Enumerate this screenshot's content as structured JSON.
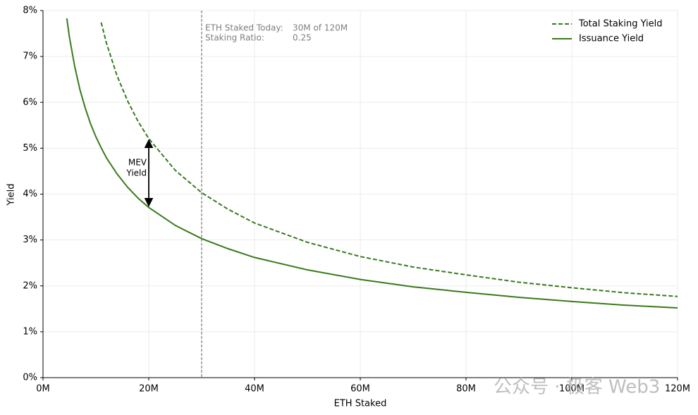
{
  "chart_data": {
    "type": "line",
    "xlabel": "ETH Staked",
    "ylabel": "Yield",
    "x": [
      4.5,
      5,
      6,
      7,
      8,
      9,
      10,
      11,
      12,
      14,
      16,
      18,
      20,
      25,
      30,
      35,
      40,
      50,
      60,
      70,
      80,
      90,
      100,
      110,
      120
    ],
    "series": [
      {
        "name": "Total Staking Yield",
        "color": "#3a7a1c",
        "dash": true,
        "values": [
          null,
          null,
          null,
          null,
          null,
          null,
          null,
          7.74,
          7.29,
          6.58,
          6.03,
          5.58,
          5.21,
          4.52,
          4.03,
          3.67,
          3.37,
          2.95,
          2.64,
          2.41,
          2.24,
          2.08,
          1.96,
          1.85,
          1.77
        ]
      },
      {
        "name": "Issuance Yield",
        "color": "#3a7a1c",
        "dash": false,
        "values": [
          7.83,
          7.42,
          6.78,
          6.27,
          5.87,
          5.53,
          5.25,
          5.01,
          4.79,
          4.44,
          4.15,
          3.91,
          3.71,
          3.32,
          3.03,
          2.81,
          2.62,
          2.35,
          2.14,
          1.98,
          1.86,
          1.75,
          1.66,
          1.58,
          1.52
        ]
      }
    ],
    "xlim": [
      0,
      120
    ],
    "ylim": [
      0,
      8
    ],
    "xticks": [
      {
        "value": 0,
        "label": "0M"
      },
      {
        "value": 20,
        "label": "20M"
      },
      {
        "value": 40,
        "label": "40M"
      },
      {
        "value": 60,
        "label": "60M"
      },
      {
        "value": 80,
        "label": "80M"
      },
      {
        "value": 100,
        "label": "100M"
      },
      {
        "value": 120,
        "label": "120M"
      }
    ],
    "yticks": [
      {
        "value": 0,
        "label": "0%"
      },
      {
        "value": 1,
        "label": "1%"
      },
      {
        "value": 2,
        "label": "2%"
      },
      {
        "value": 3,
        "label": "3%"
      },
      {
        "value": 4,
        "label": "4%"
      },
      {
        "value": 5,
        "label": "5%"
      },
      {
        "value": 6,
        "label": "6%"
      },
      {
        "value": 7,
        "label": "7%"
      },
      {
        "value": 8,
        "label": "8%"
      }
    ],
    "grid": true,
    "legend": "upper right",
    "annotations": {
      "vline": 30,
      "info": [
        [
          "ETH Staked Today:",
          "30M of 120M"
        ],
        [
          "Staking Ratio:",
          "0.25"
        ]
      ],
      "mev": {
        "x": 20,
        "from": 3.71,
        "to": 5.21,
        "label": [
          "MEV",
          "Yield"
        ]
      }
    },
    "watermark": "公众号 · 极客 Web3"
  }
}
